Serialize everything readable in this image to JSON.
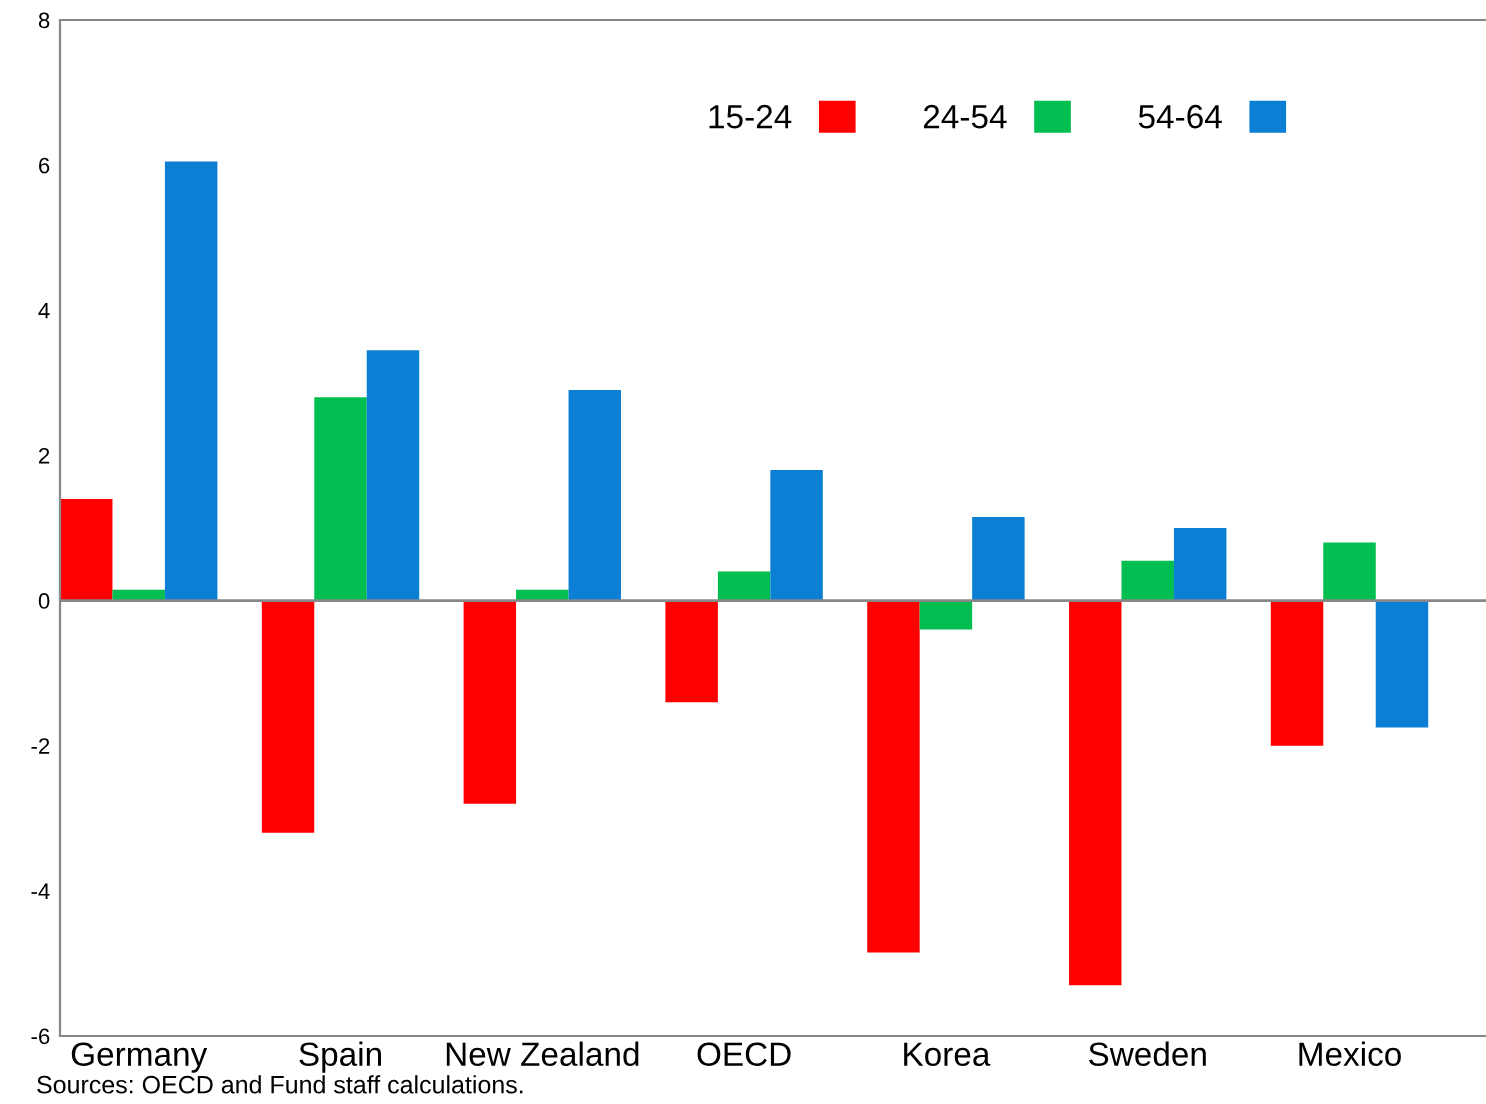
{
  "chart_data": {
    "type": "bar",
    "categories": [
      "Germany",
      "Spain",
      "New Zealand",
      "OECD",
      "Korea",
      "Sweden",
      "Mexico"
    ],
    "series": [
      {
        "name": "15-24",
        "color": "#ff0000",
        "values": [
          1.4,
          -3.2,
          -2.8,
          -1.4,
          -4.85,
          -5.3,
          -2.0
        ]
      },
      {
        "name": "24-54",
        "color": "#00bf50",
        "values": [
          0.15,
          2.8,
          0.15,
          0.4,
          -0.4,
          0.55,
          0.8
        ]
      },
      {
        "name": "54-64",
        "color": "#0a7fd4",
        "values": [
          6.05,
          3.45,
          2.9,
          1.8,
          1.15,
          1.0,
          -1.75
        ]
      }
    ],
    "ylim": [
      -6,
      8
    ],
    "yticks": [
      -6,
      -4,
      -2,
      0,
      2,
      4,
      6,
      8
    ],
    "ref_lines": [
      {
        "axis": "y",
        "value": 0,
        "color": "#888888"
      }
    ],
    "legend": "top",
    "grid": false,
    "annotations": [
      "Sources: OECD and Fund staff calculations."
    ]
  }
}
